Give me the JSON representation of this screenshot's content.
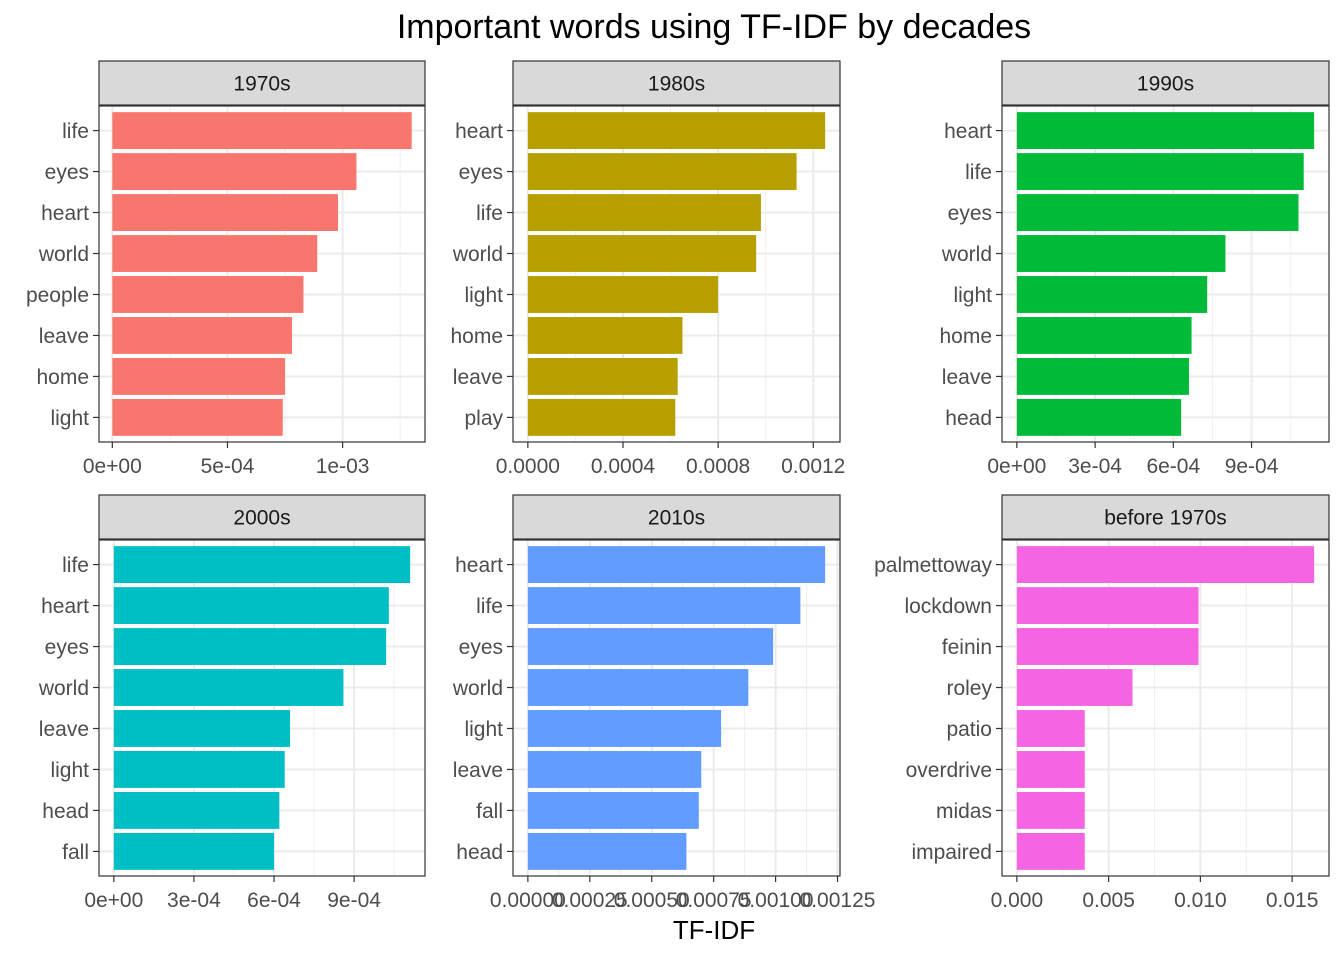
{
  "chart_data": {
    "type": "bar",
    "title": "Important words using TF-IDF by decades",
    "xlabel": "TF-IDF",
    "ylabel": "",
    "orientation": "horizontal",
    "facets": [
      {
        "label": "1970s",
        "color": "#F8766D",
        "categories": [
          "life",
          "eyes",
          "heart",
          "world",
          "people",
          "leave",
          "home",
          "light"
        ],
        "values": [
          0.0013,
          0.00106,
          0.00098,
          0.00089,
          0.00083,
          0.00078,
          0.00075,
          0.00074
        ],
        "xlim": [
          -5.78e-05,
          0.0013578
        ],
        "xticks": [
          0,
          0.0005,
          0.001
        ],
        "xtick_labels": [
          "0e+00",
          "5e-04",
          "1e-03"
        ]
      },
      {
        "label": "1980s",
        "color": "#B79F00",
        "categories": [
          "heart",
          "eyes",
          "life",
          "world",
          "light",
          "home",
          "leave",
          "play"
        ],
        "values": [
          0.00125,
          0.00113,
          0.00098,
          0.00096,
          0.0008,
          0.00065,
          0.00063,
          0.00062
        ],
        "xlim": [
          -6.25e-05,
          0.0013125
        ],
        "xticks": [
          0,
          0.0004,
          0.0008,
          0.0012
        ],
        "xtick_labels": [
          "0.0000",
          "0.0004",
          "0.0008",
          "0.0012"
        ]
      },
      {
        "label": "1990s",
        "color": "#00BA38",
        "categories": [
          "heart",
          "life",
          "eyes",
          "world",
          "light",
          "home",
          "leave",
          "head"
        ],
        "values": [
          0.00114,
          0.0011,
          0.00108,
          0.0008,
          0.00073,
          0.00067,
          0.00066,
          0.00063
        ],
        "xlim": [
          -5.7e-05,
          0.001197
        ],
        "xticks": [
          0,
          0.0003,
          0.0006,
          0.0009
        ],
        "xtick_labels": [
          "0e+00",
          "3e-04",
          "6e-04",
          "9e-04"
        ]
      },
      {
        "label": "2000s",
        "color": "#00BFC4",
        "categories": [
          "life",
          "heart",
          "eyes",
          "world",
          "leave",
          "light",
          "head",
          "fall"
        ],
        "values": [
          0.00111,
          0.00103,
          0.00102,
          0.00086,
          0.00066,
          0.00064,
          0.00062,
          0.0006
        ],
        "xlim": [
          -5.55e-05,
          0.0011655
        ],
        "xticks": [
          0,
          0.0003,
          0.0006,
          0.0009
        ],
        "xtick_labels": [
          "0e+00",
          "3e-04",
          "6e-04",
          "9e-04"
        ]
      },
      {
        "label": "2010s",
        "color": "#619CFF",
        "categories": [
          "heart",
          "life",
          "eyes",
          "world",
          "light",
          "leave",
          "fall",
          "head"
        ],
        "values": [
          0.0012,
          0.0011,
          0.00099,
          0.00089,
          0.00078,
          0.0007,
          0.00069,
          0.00064
        ],
        "xlim": [
          -6e-05,
          0.00126
        ],
        "xticks": [
          0,
          0.00025,
          0.0005,
          0.00075,
          0.001,
          0.00125
        ],
        "xtick_labels": [
          "0.00000",
          "0.00025",
          "0.00050",
          "0.00075",
          "0.00100",
          "0.00125"
        ]
      },
      {
        "label": "before 1970s",
        "color": "#F564E3",
        "categories": [
          "palmettoway",
          "lockdown",
          "feinin",
          "roley",
          "patio",
          "overdrive",
          "midas",
          "impaired"
        ],
        "values": [
          0.0162,
          0.0099,
          0.0099,
          0.0063,
          0.0037,
          0.0037,
          0.0037,
          0.0037
        ],
        "xlim": [
          -0.00081,
          0.01701
        ],
        "xticks": [
          0,
          0.005,
          0.01,
          0.015
        ],
        "xtick_labels": [
          "0.000",
          "0.005",
          "0.010",
          "0.015"
        ]
      }
    ],
    "grid": true,
    "legend": "none"
  }
}
